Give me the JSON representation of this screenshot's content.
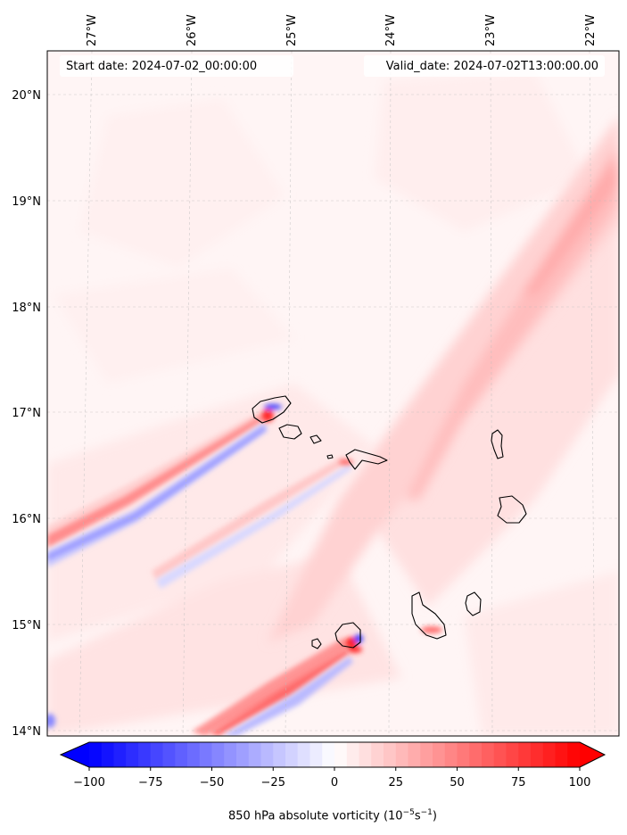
{
  "map": {
    "start_label": "Start date: 2024-07-02_00:00:00",
    "valid_label": "Valid_date: 2024-07-02T13:00:00.00",
    "lon_ticks": [
      "27°W",
      "26°W",
      "25°W",
      "24°W",
      "23°W",
      "22°W"
    ],
    "lat_ticks": [
      "20°N",
      "19°N",
      "18°N",
      "17°N",
      "16°N",
      "15°N",
      "14°N"
    ],
    "colormap": "bwr",
    "gridlines": true
  },
  "colorbar": {
    "ticks": [
      "−100",
      "−75",
      "−50",
      "−25",
      "0",
      "25",
      "50",
      "75",
      "100"
    ],
    "min": -100,
    "max": 100,
    "title_main": "850 hPa absolute vorticity (10",
    "title_exp1": "−5",
    "title_mid": "s",
    "title_exp2": "−1",
    "title_end": ")"
  }
}
